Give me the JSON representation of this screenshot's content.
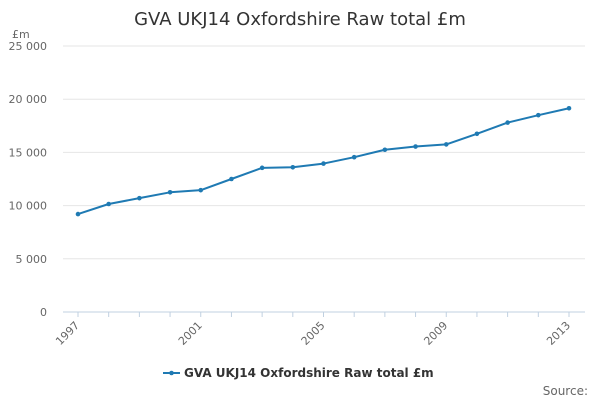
{
  "chart_data": {
    "type": "line",
    "title": "GVA UKJ14 Oxfordshire Raw total £m",
    "ylabel": "£m",
    "xlabel": "",
    "x": [
      1997,
      1998,
      1999,
      2000,
      2001,
      2002,
      2003,
      2004,
      2005,
      2006,
      2007,
      2008,
      2009,
      2010,
      2011,
      2012,
      2013
    ],
    "x_tick_labels": [
      "1997",
      "2001",
      "2005",
      "2009",
      "2013"
    ],
    "y_tick_labels": [
      "0",
      "5 000",
      "10 000",
      "15 000",
      "20 000",
      "25 000"
    ],
    "y_ticks": [
      0,
      5000,
      10000,
      15000,
      20000,
      25000
    ],
    "ylim": [
      0,
      25000
    ],
    "grid": "horizontal",
    "legend_position": "bottom",
    "series": [
      {
        "name": "GVA UKJ14 Oxfordshire Raw total £m",
        "color": "#1f7ab3",
        "values": [
          9200,
          10150,
          10700,
          11250,
          11450,
          12500,
          13550,
          13600,
          13950,
          14550,
          15250,
          15550,
          15750,
          16750,
          17800,
          18500,
          19150
        ]
      }
    ],
    "source_label": "Source:"
  }
}
